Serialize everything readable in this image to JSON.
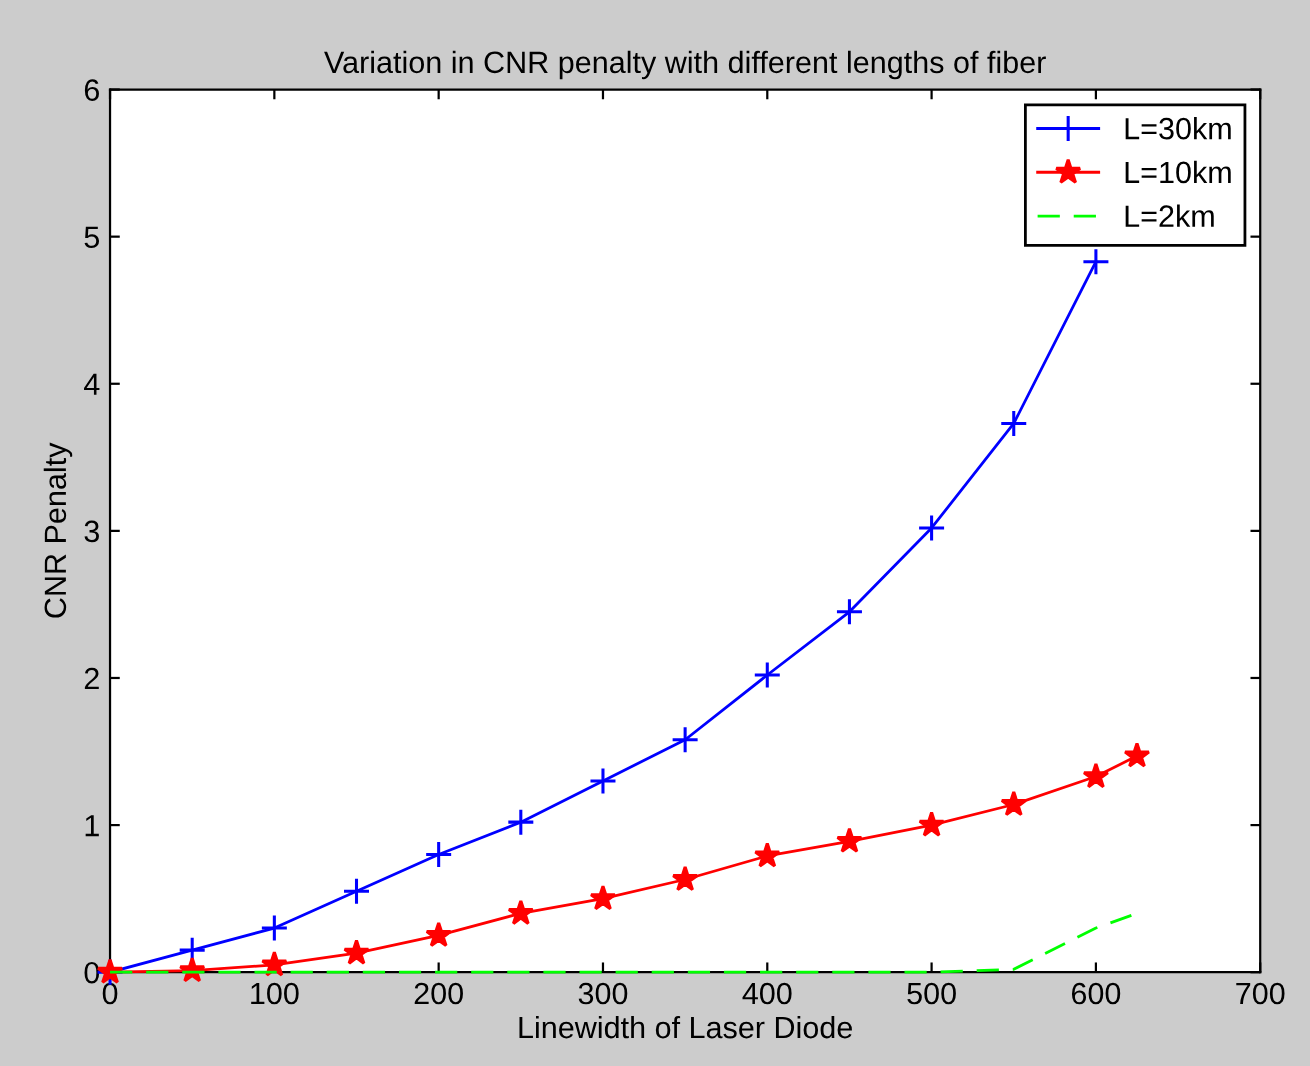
{
  "chart_data": {
    "type": "line",
    "title": "Variation in CNR penalty with different lengths of fiber",
    "xlabel": "Linewidth of Laser Diode",
    "ylabel": "CNR Penalty",
    "x": [
      0,
      50,
      100,
      150,
      200,
      250,
      300,
      350,
      400,
      450,
      500,
      550,
      600,
      625
    ],
    "series": [
      {
        "name": "L=30km",
        "color": "#0000ff",
        "marker": "cross",
        "line_style": "solid",
        "values": [
          0,
          0.15,
          0.3,
          0.55,
          0.8,
          1.02,
          1.3,
          1.58,
          2.02,
          2.45,
          3.02,
          3.73,
          4.83,
          null
        ]
      },
      {
        "name": "L=10km",
        "color": "#ff0000",
        "marker": "star",
        "line_style": "solid",
        "values": [
          0,
          0.01,
          0.05,
          0.13,
          0.25,
          0.4,
          0.5,
          0.63,
          0.79,
          0.89,
          1.0,
          1.14,
          1.33,
          1.47
        ]
      },
      {
        "name": "L=2km",
        "color": "#00ff00",
        "marker": "none",
        "line_style": "dashed",
        "values": [
          0,
          0,
          0,
          0,
          0,
          0,
          0,
          0,
          0,
          0,
          0,
          0.02,
          0.3,
          0.4
        ]
      }
    ],
    "xlim": [
      0,
      700
    ],
    "ylim": [
      0,
      6
    ],
    "xticks": [
      0,
      100,
      200,
      300,
      400,
      500,
      600,
      700
    ],
    "yticks": [
      0,
      1,
      2,
      3,
      4,
      5,
      6
    ],
    "grid": false,
    "legend": "top right"
  }
}
